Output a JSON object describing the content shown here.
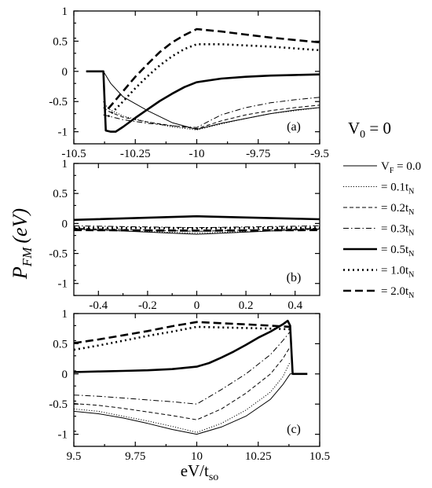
{
  "figure": {
    "ylabel_main": "P",
    "ylabel_sub": "FM",
    "ylabel_unit": "(eV)",
    "xlabel_main": "eV/t",
    "xlabel_sub": "so",
    "v0_label_main": "V",
    "v0_label_sub": "0",
    "v0_label_value": " = 0"
  },
  "legend": {
    "entries": [
      {
        "prefix": "V",
        "prefix_sub": "F",
        "text": " = 0.0",
        "unit": "",
        "unit_sub": "",
        "style": "thin"
      },
      {
        "prefix": "",
        "prefix_sub": "",
        "text": "= 0.1t",
        "unit_sub": "N",
        "style": "dotted-thin"
      },
      {
        "prefix": "",
        "prefix_sub": "",
        "text": "= 0.2t",
        "unit_sub": "N",
        "style": "dashed-thin"
      },
      {
        "prefix": "",
        "prefix_sub": "",
        "text": "= 0.3t",
        "unit_sub": "N",
        "style": "dashdot-thin"
      },
      {
        "prefix": "",
        "prefix_sub": "",
        "text": "= 0.5t",
        "unit_sub": "N",
        "style": "thick"
      },
      {
        "prefix": "",
        "prefix_sub": "",
        "text": "= 1.0t",
        "unit_sub": "N",
        "style": "dotted-thick"
      },
      {
        "prefix": "",
        "prefix_sub": "",
        "text": "= 2.0t",
        "unit_sub": "N",
        "style": "dashed-thick"
      }
    ]
  },
  "chart_data": [
    {
      "type": "line",
      "panel_label": "(a)",
      "xlim": [
        -10.5,
        -9.5
      ],
      "ylim": [
        -1.2,
        1.0
      ],
      "xticks": [
        -10.5,
        -10.25,
        -10,
        -9.75,
        -9.5
      ],
      "xtick_labels": [
        "-10.5",
        "-10.25",
        "-10",
        "-9.75",
        "-9.5"
      ],
      "yticks": [
        1,
        0.5,
        0,
        -0.5,
        -1
      ],
      "ytick_labels": [
        "1",
        "0.5",
        "0",
        "-0.5",
        "-1"
      ],
      "series": [
        {
          "style": "thin",
          "x": [
            -10.45,
            -10.38,
            -10.35,
            -10.3,
            -10.2,
            -10.1,
            -10.0,
            -9.9,
            -9.8,
            -9.7,
            -9.6,
            -9.5
          ],
          "y": [
            0.0,
            0.0,
            -0.2,
            -0.42,
            -0.65,
            -0.85,
            -0.96,
            -0.86,
            -0.78,
            -0.7,
            -0.64,
            -0.6
          ]
        },
        {
          "style": "dotted-thin",
          "x": [
            -10.38,
            -10.36,
            -10.3,
            -10.2,
            -10.1,
            -10.0,
            -9.9,
            -9.8,
            -9.7,
            -9.6,
            -9.5
          ],
          "y": [
            -0.5,
            -0.62,
            -0.74,
            -0.84,
            -0.92,
            -0.97,
            -0.87,
            -0.78,
            -0.7,
            -0.65,
            -0.6
          ]
        },
        {
          "style": "dashed-thin",
          "x": [
            -10.38,
            -10.36,
            -10.3,
            -10.2,
            -10.1,
            -10.0,
            -9.9,
            -9.8,
            -9.7,
            -9.6,
            -9.5
          ],
          "y": [
            -0.6,
            -0.66,
            -0.76,
            -0.84,
            -0.9,
            -0.95,
            -0.82,
            -0.72,
            -0.65,
            -0.6,
            -0.56
          ]
        },
        {
          "style": "dashdot-thin",
          "x": [
            -10.38,
            -10.36,
            -10.3,
            -10.2,
            -10.1,
            -10.0,
            -9.9,
            -9.8,
            -9.7,
            -9.6,
            -9.5
          ],
          "y": [
            -0.72,
            -0.74,
            -0.8,
            -0.86,
            -0.9,
            -0.93,
            -0.72,
            -0.6,
            -0.52,
            -0.47,
            -0.43
          ]
        },
        {
          "style": "thick",
          "x": [
            -10.45,
            -10.38,
            -10.37,
            -10.35,
            -10.33,
            -10.3,
            -10.25,
            -10.2,
            -10.15,
            -10.1,
            -10.05,
            -10.0,
            -9.9,
            -9.8,
            -9.7,
            -9.6,
            -9.5
          ],
          "y": [
            0.0,
            0.0,
            -0.98,
            -1.0,
            -1.0,
            -0.92,
            -0.77,
            -0.63,
            -0.49,
            -0.37,
            -0.26,
            -0.18,
            -0.12,
            -0.09,
            -0.07,
            -0.06,
            -0.05
          ]
        },
        {
          "style": "dotted-thick",
          "x": [
            -10.36,
            -10.3,
            -10.25,
            -10.2,
            -10.15,
            -10.1,
            -10.05,
            -10.0,
            -9.9,
            -9.8,
            -9.7,
            -9.6,
            -9.5
          ],
          "y": [
            -0.75,
            -0.5,
            -0.28,
            -0.08,
            0.1,
            0.25,
            0.37,
            0.45,
            0.45,
            0.43,
            0.41,
            0.38,
            0.35
          ]
        },
        {
          "style": "dashed-thick",
          "x": [
            -10.36,
            -10.3,
            -10.25,
            -10.2,
            -10.15,
            -10.1,
            -10.05,
            -10.0,
            -9.9,
            -9.8,
            -9.7,
            -9.6,
            -9.5
          ],
          "y": [
            -0.62,
            -0.33,
            -0.09,
            0.12,
            0.32,
            0.48,
            0.6,
            0.7,
            0.66,
            0.61,
            0.56,
            0.52,
            0.48
          ]
        }
      ]
    },
    {
      "type": "line",
      "panel_label": "(b)",
      "xlim": [
        -0.5,
        0.5
      ],
      "ylim": [
        -1.2,
        1.0
      ],
      "xticks": [
        -0.4,
        -0.2,
        0,
        0.2,
        0.4
      ],
      "xtick_labels": [
        "-0.4",
        "-0.2",
        "0",
        "0.2",
        "0.4"
      ],
      "yticks": [
        1,
        0.5,
        0,
        -0.5,
        -1
      ],
      "ytick_labels": [
        "1",
        "0.5",
        "0",
        "-0.5",
        "-1"
      ],
      "series": [
        {
          "style": "thin",
          "x": [
            -0.5,
            0.0,
            0.5
          ],
          "y": [
            -0.09,
            -0.18,
            -0.09
          ]
        },
        {
          "style": "dotted-thin",
          "x": [
            -0.5,
            0.0,
            0.5
          ],
          "y": [
            -0.1,
            -0.16,
            -0.1
          ]
        },
        {
          "style": "dashed-thin",
          "x": [
            -0.5,
            0.0,
            0.5
          ],
          "y": [
            -0.08,
            -0.13,
            -0.08
          ]
        },
        {
          "style": "dashdot-thin",
          "x": [
            -0.5,
            0.0,
            0.5
          ],
          "y": [
            -0.04,
            -0.07,
            -0.04
          ]
        },
        {
          "style": "thick",
          "x": [
            -0.5,
            0.0,
            0.5
          ],
          "y": [
            0.06,
            0.12,
            0.07
          ]
        },
        {
          "style": "dotted-thick",
          "x": [
            -0.5,
            0.0,
            0.5
          ],
          "y": [
            -0.07,
            -0.08,
            -0.07
          ]
        },
        {
          "style": "dashed-thick",
          "x": [
            -0.5,
            0.0,
            0.5
          ],
          "y": [
            -0.11,
            -0.12,
            -0.11
          ]
        }
      ]
    },
    {
      "type": "line",
      "panel_label": "(c)",
      "xlim": [
        9.5,
        10.5
      ],
      "ylim": [
        -1.2,
        1.0
      ],
      "xticks": [
        9.5,
        9.75,
        10,
        10.25,
        10.5
      ],
      "xtick_labels": [
        "9.5",
        "9.75",
        "10",
        "10.25",
        "10.5"
      ],
      "yticks": [
        1,
        0.5,
        0,
        -0.5,
        -1
      ],
      "ytick_labels": [
        "1",
        "0.5",
        "0",
        "-0.5",
        "-1"
      ],
      "series": [
        {
          "style": "thin",
          "x": [
            9.5,
            9.6,
            9.7,
            9.8,
            9.9,
            10.0,
            10.1,
            10.2,
            10.3,
            10.35,
            10.38,
            10.39
          ],
          "y": [
            -0.62,
            -0.66,
            -0.73,
            -0.82,
            -0.92,
            -1.0,
            -0.88,
            -0.7,
            -0.42,
            -0.18,
            0.0,
            0.0
          ]
        },
        {
          "style": "dotted-thin",
          "x": [
            9.5,
            9.6,
            9.7,
            9.8,
            9.9,
            10.0,
            10.1,
            10.2,
            10.3,
            10.35,
            10.38
          ],
          "y": [
            -0.58,
            -0.62,
            -0.7,
            -0.78,
            -0.87,
            -0.97,
            -0.82,
            -0.6,
            -0.3,
            -0.05,
            0.2
          ]
        },
        {
          "style": "dashed-thin",
          "x": [
            9.5,
            9.6,
            9.7,
            9.8,
            9.9,
            10.0,
            10.1,
            10.2,
            10.3,
            10.35,
            10.38
          ],
          "y": [
            -0.49,
            -0.52,
            -0.57,
            -0.63,
            -0.69,
            -0.76,
            -0.58,
            -0.32,
            0.0,
            0.25,
            0.45
          ]
        },
        {
          "style": "dashdot-thin",
          "x": [
            9.5,
            9.6,
            9.7,
            9.8,
            9.9,
            10.0,
            10.1,
            10.2,
            10.3,
            10.35,
            10.38
          ],
          "y": [
            -0.35,
            -0.37,
            -0.4,
            -0.43,
            -0.46,
            -0.5,
            -0.26,
            0.0,
            0.32,
            0.55,
            0.7
          ]
        },
        {
          "style": "thick",
          "x": [
            9.5,
            9.6,
            9.7,
            9.8,
            9.9,
            10.0,
            10.05,
            10.1,
            10.15,
            10.2,
            10.25,
            10.3,
            10.35,
            10.37,
            10.38,
            10.39,
            10.45
          ],
          "y": [
            0.03,
            0.04,
            0.05,
            0.06,
            0.08,
            0.12,
            0.18,
            0.27,
            0.37,
            0.48,
            0.6,
            0.7,
            0.82,
            0.88,
            0.8,
            0.0,
            0.0
          ]
        },
        {
          "style": "dotted-thick",
          "x": [
            9.5,
            9.6,
            9.7,
            9.8,
            9.9,
            10.0,
            10.1,
            10.2,
            10.3,
            10.38
          ],
          "y": [
            0.4,
            0.47,
            0.55,
            0.63,
            0.7,
            0.78,
            0.77,
            0.76,
            0.75,
            0.74
          ]
        },
        {
          "style": "dashed-thick",
          "x": [
            9.5,
            9.6,
            9.7,
            9.8,
            9.9,
            10.0,
            10.1,
            10.2,
            10.3,
            10.38
          ],
          "y": [
            0.51,
            0.57,
            0.64,
            0.71,
            0.79,
            0.86,
            0.84,
            0.82,
            0.8,
            0.78
          ]
        }
      ]
    }
  ]
}
